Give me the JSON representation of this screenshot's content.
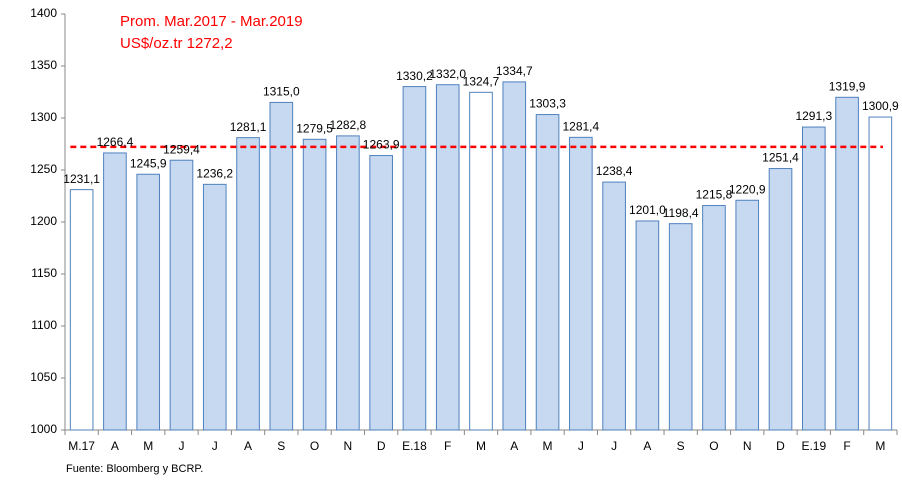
{
  "chart_data": {
    "type": "bar",
    "categories": [
      "M.17",
      "A",
      "M",
      "J",
      "J",
      "A",
      "S",
      "O",
      "N",
      "D",
      "E.18",
      "F",
      "M",
      "A",
      "M",
      "J",
      "J",
      "A",
      "S",
      "O",
      "N",
      "D",
      "E.19",
      "F",
      "M"
    ],
    "values": [
      1231.1,
      1266.4,
      1245.9,
      1259.4,
      1236.2,
      1281.1,
      1315.0,
      1279.5,
      1282.8,
      1263.9,
      1330.2,
      1332.0,
      1324.7,
      1334.7,
      1303.3,
      1281.4,
      1238.4,
      1201.0,
      1198.4,
      1215.8,
      1220.9,
      1251.4,
      1291.3,
      1319.9,
      1300.9
    ],
    "value_labels": [
      "1231,1",
      "1266,4",
      "1245,9",
      "1259,4",
      "1236,2",
      "1281,1",
      "1315,0",
      "1279,5",
      "1282,8",
      "1263,9",
      "1330,2",
      "1332,0",
      "1324,7",
      "1334,7",
      "1303,3",
      "1281,4",
      "1238,4",
      "1201,0",
      "1198,4",
      "1215,8",
      "1220,9",
      "1251,4",
      "1291,3",
      "1319,9",
      "1300,9"
    ],
    "colors": [
      "#ffffff",
      "#c6d9f1",
      "#c6d9f1",
      "#c6d9f1",
      "#c6d9f1",
      "#c6d9f1",
      "#c6d9f1",
      "#c6d9f1",
      "#c6d9f1",
      "#c6d9f1",
      "#c6d9f1",
      "#c6d9f1",
      "#ffffff",
      "#c6d9f1",
      "#c6d9f1",
      "#c6d9f1",
      "#c6d9f1",
      "#c6d9f1",
      "#c6d9f1",
      "#c6d9f1",
      "#c6d9f1",
      "#c6d9f1",
      "#c6d9f1",
      "#c6d9f1",
      "#ffffff"
    ],
    "border_color": "#4f81bd",
    "ylim": [
      1000,
      1400
    ],
    "yticks": [
      1000,
      1050,
      1100,
      1150,
      1200,
      1250,
      1300,
      1350,
      1400
    ],
    "grid": false,
    "reference_line": {
      "value": 1272.2,
      "title": "Prom. Mar.2017 - Mar.2019",
      "label": "US$/oz.tr 1272,2",
      "color": "#ff0000"
    },
    "source": "Fuente: Bloomberg y BCRP."
  }
}
